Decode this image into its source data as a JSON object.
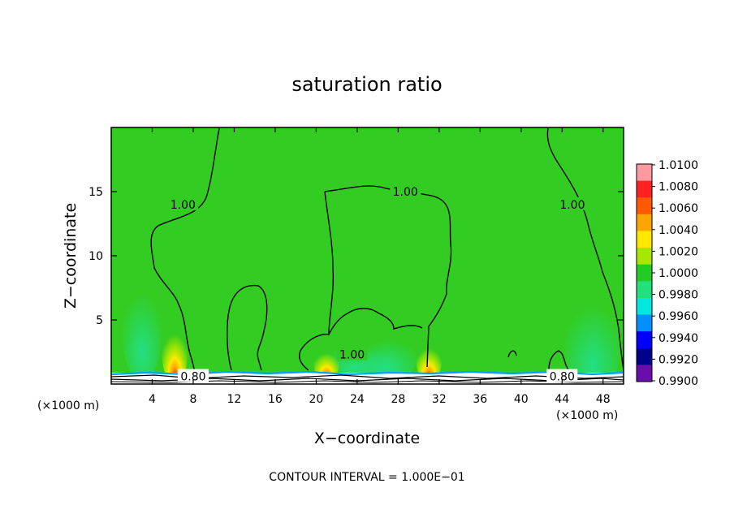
{
  "chart_data": {
    "type": "heatmap",
    "title": "saturation ratio",
    "xlabel": "X−coordinate",
    "ylabel": "Z−coordinate",
    "x_unit": "(×1000 m)",
    "xlim": [
      0,
      50
    ],
    "ylim": [
      0,
      20
    ],
    "x_ticks": [
      "4",
      "8",
      "12",
      "16",
      "20",
      "24",
      "28",
      "32",
      "36",
      "40",
      "44",
      "48"
    ],
    "y_ticks": [
      "5",
      "10",
      "15"
    ],
    "footer": "CONTOUR INTERVAL = 1.000E−01",
    "colorbar": {
      "labels": [
        "1.0100",
        "1.0080",
        "1.0060",
        "1.0040",
        "1.0020",
        "1.0000",
        "0.9980",
        "0.9960",
        "0.9940",
        "0.9920",
        "0.9900"
      ],
      "colors": [
        "#ff9aa0",
        "#ff2222",
        "#ff5a00",
        "#ffa500",
        "#ffe800",
        "#a8e800",
        "#22cc22",
        "#22e07a",
        "#00e8e0",
        "#0090ff",
        "#0000ff",
        "#00008b",
        "#6a0dad"
      ]
    },
    "background_color": "#33cc22",
    "contour_labels": [
      {
        "text": "1.00",
        "x": 7.0,
        "z": 14.0
      },
      {
        "text": "1.00",
        "x": 28.7,
        "z": 15.0
      },
      {
        "text": "1.00",
        "x": 45.0,
        "z": 14.0
      },
      {
        "text": "1.00",
        "x": 23.5,
        "z": 2.3
      },
      {
        "text": "0.80",
        "x": 8.0,
        "z": 0.6
      },
      {
        "text": "0.80",
        "x": 44.0,
        "z": 0.6
      }
    ],
    "moist_plumes": [
      {
        "x": 6.2,
        "z_top": 5.0,
        "peak": 1.008
      },
      {
        "x": 21.0,
        "z_top": 3.0,
        "peak": 1.008
      },
      {
        "x": 31.0,
        "z_top": 3.5,
        "peak": 1.008
      }
    ]
  }
}
